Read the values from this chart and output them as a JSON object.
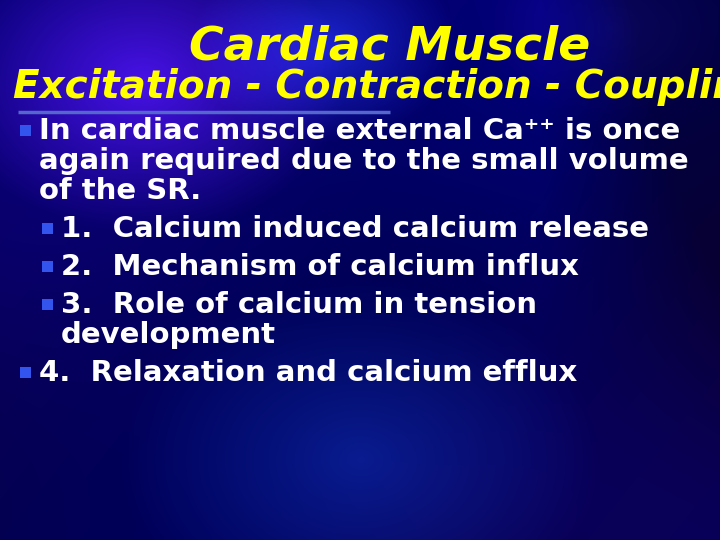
{
  "title_line1": "Cardiac Muscle",
  "title_line2": "Excitation - Contraction - Coupling",
  "title_color": "#FFFF00",
  "title_fontsize1": 34,
  "title_fontsize2": 28,
  "text_color": "#FFFFFF",
  "bullet_color": "#3355EE",
  "divider_color": "#5566CC",
  "content_items": [
    {
      "lines": [
        "In cardiac muscle external Ca⁺⁺ is once",
        "again required due to the small volume",
        "of the SR."
      ],
      "indent": false
    },
    {
      "lines": [
        "1.  Calcium induced calcium release"
      ],
      "indent": true
    },
    {
      "lines": [
        "2.  Mechanism of calcium influx"
      ],
      "indent": true
    },
    {
      "lines": [
        "3.  Role of calcium in tension",
        "development"
      ],
      "indent": true
    },
    {
      "lines": [
        "4.  Relaxation and calcium efflux"
      ],
      "indent": false
    }
  ],
  "text_fontsize": 21
}
